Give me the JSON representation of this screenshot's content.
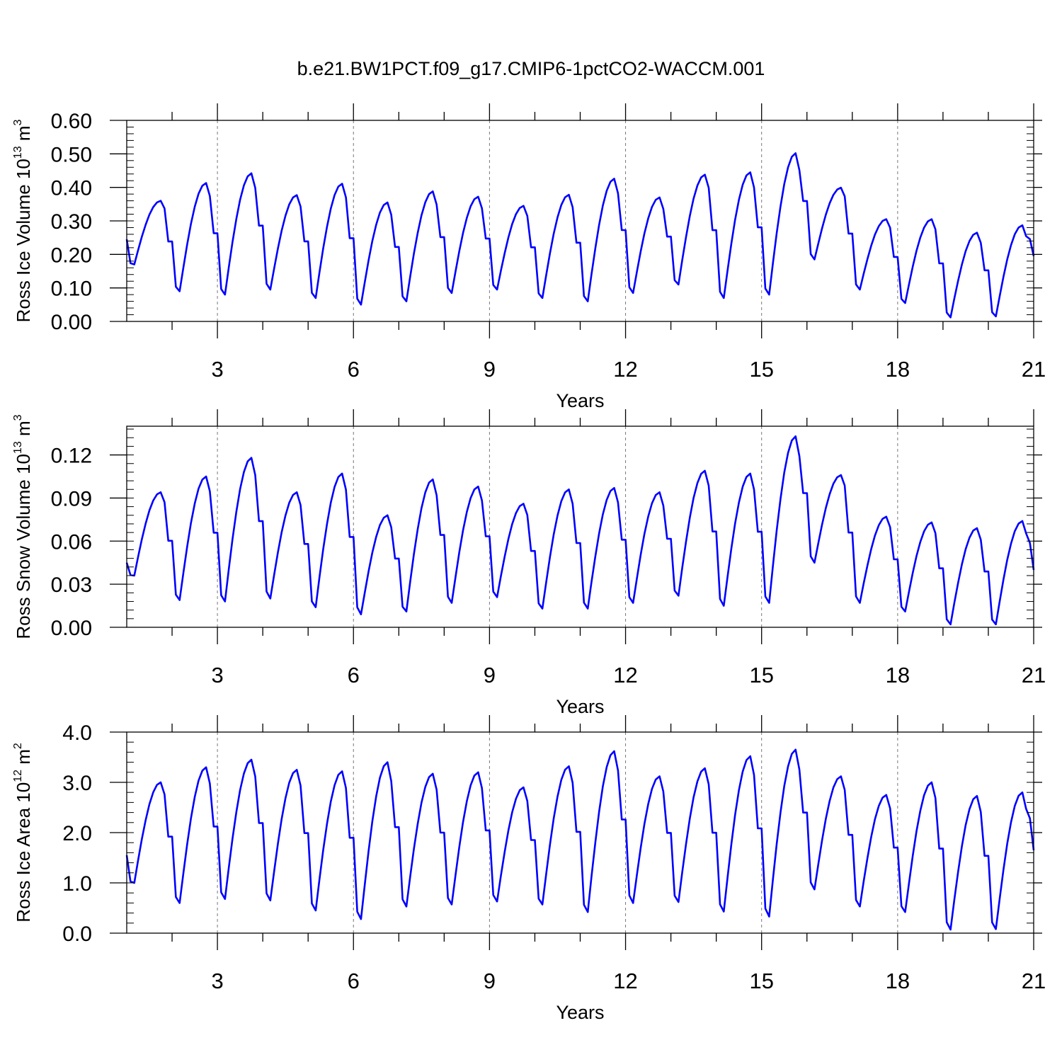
{
  "page": {
    "title": "b.e21.BW1PCT.f09_g17.CMIP6-1pctCO2-WACCM.001"
  },
  "chart_data": [
    {
      "type": "line",
      "ylabel": "Ross Ice Volume 10",
      "ylabel_exp": "13",
      "ylabel_unit": " m",
      "ylabel_unit_exp": "3",
      "xlabel": "Years",
      "xlim": [
        1,
        21
      ],
      "ylim": [
        0,
        0.6
      ],
      "yticks": [
        0,
        0.1,
        0.2,
        0.3,
        0.4,
        0.5,
        0.6
      ],
      "ytick_labels": [
        "0.00",
        "0.10",
        "0.20",
        "0.30",
        "0.40",
        "0.50",
        "0.60"
      ],
      "xticks": [
        3,
        6,
        9,
        12,
        15,
        18,
        21
      ],
      "xtick_labels": [
        "3",
        "6",
        "9",
        "12",
        "15",
        "18",
        "21"
      ],
      "line_color": "#0000ff",
      "minima": [
        0.17,
        0.09,
        0.08,
        0.095,
        0.07,
        0.05,
        0.06,
        0.085,
        0.095,
        0.07,
        0.06,
        0.085,
        0.11,
        0.07,
        0.08,
        0.185,
        0.095,
        0.055,
        0.012,
        0.015
      ],
      "maxima": [
        0.36,
        0.413,
        0.442,
        0.377,
        0.411,
        0.355,
        0.388,
        0.372,
        0.345,
        0.378,
        0.426,
        0.37,
        0.438,
        0.445,
        0.502,
        0.399,
        0.305,
        0.305,
        0.265,
        0.287
      ],
      "start_value": 0.245,
      "end_value": 0.195
    },
    {
      "type": "line",
      "ylabel": "Ross Snow Volume 10",
      "ylabel_exp": "13",
      "ylabel_unit": " m",
      "ylabel_unit_exp": "3",
      "xlabel": "Years",
      "xlim": [
        1,
        21
      ],
      "ylim": [
        0,
        0.14
      ],
      "yticks": [
        0,
        0.03,
        0.06,
        0.09,
        0.12
      ],
      "ytick_labels": [
        "0.00",
        "0.03",
        "0.06",
        "0.09",
        "0.12"
      ],
      "xticks": [
        3,
        6,
        9,
        12,
        15,
        18,
        21
      ],
      "xtick_labels": [
        "3",
        "6",
        "9",
        "12",
        "15",
        "18",
        "21"
      ],
      "line_color": "#0000ff",
      "minima": [
        0.036,
        0.019,
        0.018,
        0.02,
        0.014,
        0.009,
        0.011,
        0.017,
        0.021,
        0.013,
        0.013,
        0.017,
        0.022,
        0.015,
        0.017,
        0.045,
        0.017,
        0.011,
        0.002,
        0.002
      ],
      "maxima": [
        0.094,
        0.105,
        0.118,
        0.094,
        0.107,
        0.078,
        0.103,
        0.098,
        0.086,
        0.096,
        0.097,
        0.094,
        0.109,
        0.107,
        0.133,
        0.106,
        0.077,
        0.073,
        0.069,
        0.074
      ],
      "start_value": 0.045,
      "end_value": 0.04
    },
    {
      "type": "line",
      "ylabel": "Ross Ice Area 10",
      "ylabel_exp": "12",
      "ylabel_unit": " m",
      "ylabel_unit_exp": "2",
      "xlabel": "Years",
      "xlim": [
        1,
        21
      ],
      "ylim": [
        0,
        4
      ],
      "yticks": [
        0,
        1,
        2,
        3,
        4
      ],
      "ytick_labels": [
        "0.0",
        "1.0",
        "2.0",
        "3.0",
        "4.0"
      ],
      "xticks": [
        3,
        6,
        9,
        12,
        15,
        18,
        21
      ],
      "xtick_labels": [
        "3",
        "6",
        "9",
        "12",
        "15",
        "18",
        "21"
      ],
      "line_color": "#0000ff",
      "minima": [
        1.0,
        0.6,
        0.68,
        0.65,
        0.45,
        0.28,
        0.53,
        0.57,
        0.63,
        0.57,
        0.42,
        0.6,
        0.62,
        0.43,
        0.33,
        0.87,
        0.53,
        0.42,
        0.07,
        0.08
      ],
      "maxima": [
        3.0,
        3.3,
        3.45,
        3.25,
        3.22,
        3.4,
        3.17,
        3.2,
        2.9,
        3.32,
        3.62,
        3.12,
        3.28,
        3.52,
        3.65,
        3.12,
        2.75,
        3.0,
        2.73,
        2.8
      ],
      "start_value": 1.55,
      "end_value": 1.65
    }
  ]
}
